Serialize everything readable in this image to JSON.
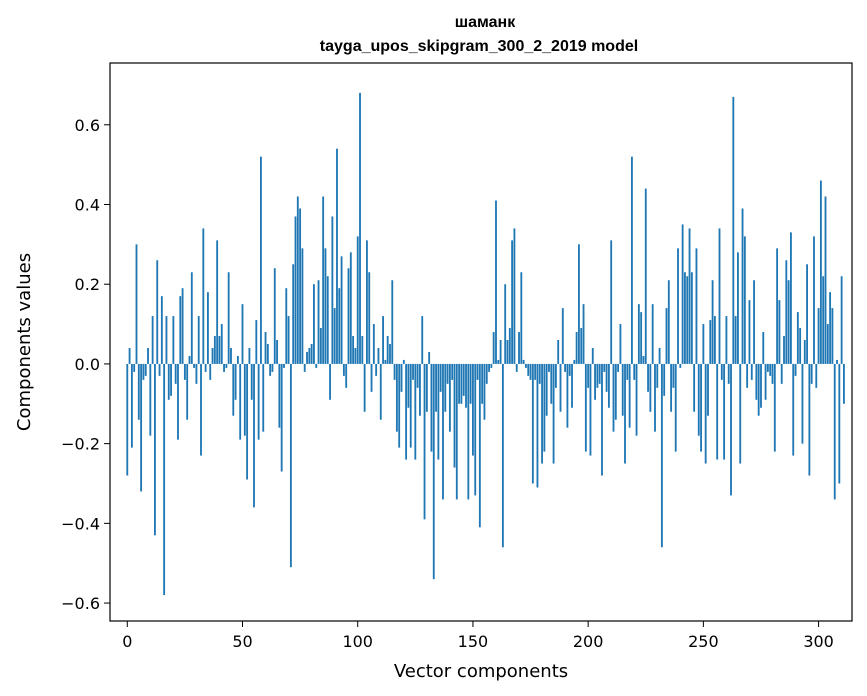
{
  "chart_data": {
    "type": "bar",
    "title": "шаманк",
    "subtitle": "tayga_upos_skipgram_300_2_2019 model",
    "xlabel": "Vector components",
    "ylabel": "Components values",
    "xlim": [
      -7.5,
      314.5
    ],
    "ylim": [
      -0.645,
      0.755
    ],
    "xticks": [
      0,
      50,
      100,
      150,
      200,
      250,
      300
    ],
    "yticks": [
      -0.6,
      -0.4,
      -0.2,
      0.0,
      0.2,
      0.4,
      0.6
    ],
    "ytick_labels": [
      "−0.6",
      "−0.4",
      "−0.2",
      "0.0",
      "0.2",
      "0.4",
      "0.6"
    ],
    "bar_color": "#1f77b4",
    "values": [
      -0.28,
      0.04,
      -0.21,
      -0.02,
      0.3,
      -0.14,
      -0.32,
      -0.04,
      -0.03,
      0.04,
      -0.18,
      0.12,
      -0.43,
      0.26,
      -0.03,
      0.17,
      -0.58,
      0.12,
      -0.09,
      -0.08,
      0.12,
      -0.05,
      -0.19,
      0.17,
      0.19,
      -0.04,
      -0.14,
      0.02,
      0.23,
      -0.01,
      -0.05,
      0.12,
      -0.23,
      0.34,
      -0.02,
      0.18,
      -0.04,
      0.04,
      0.07,
      0.31,
      0.07,
      0.1,
      -0.02,
      -0.01,
      0.23,
      0.04,
      -0.13,
      -0.09,
      0.02,
      -0.19,
      0.15,
      -0.18,
      -0.29,
      0.04,
      -0.09,
      -0.36,
      0.11,
      -0.19,
      0.52,
      -0.17,
      0.08,
      0.05,
      -0.03,
      -0.02,
      0.24,
      0.06,
      -0.16,
      -0.27,
      -0.01,
      0.19,
      0.12,
      -0.51,
      0.25,
      0.37,
      0.42,
      0.39,
      0.29,
      -0.02,
      0.03,
      0.04,
      0.05,
      0.2,
      -0.01,
      0.21,
      0.09,
      0.42,
      0.29,
      0.22,
      -0.09,
      0.37,
      0.14,
      0.54,
      0.19,
      0.27,
      -0.03,
      -0.06,
      0.24,
      0.28,
      0.07,
      0.04,
      0.32,
      0.68,
      0.07,
      -0.12,
      0.31,
      0.23,
      -0.07,
      0.1,
      -0.03,
      0.04,
      -0.14,
      0.12,
      0.01,
      0.07,
      0.05,
      0.21,
      -0.04,
      -0.17,
      -0.21,
      -0.07,
      0.01,
      -0.24,
      -0.11,
      -0.21,
      -0.04,
      -0.24,
      -0.06,
      -0.13,
      0.12,
      -0.39,
      -0.12,
      0.03,
      -0.22,
      -0.54,
      -0.12,
      -0.24,
      -0.07,
      -0.34,
      -0.12,
      -0.05,
      -0.17,
      -0.04,
      -0.26,
      -0.34,
      -0.1,
      -0.1,
      -0.08,
      -0.11,
      -0.34,
      -0.1,
      -0.23,
      -0.33,
      -0.04,
      -0.41,
      -0.1,
      -0.14,
      -0.05,
      -0.02,
      -0.01,
      0.08,
      0.41,
      0.01,
      0.06,
      -0.46,
      0.2,
      0.06,
      0.09,
      0.31,
      0.34,
      -0.02,
      0.08,
      0.23,
      0.01,
      -0.01,
      -0.03,
      -0.04,
      -0.3,
      -0.04,
      -0.31,
      -0.05,
      -0.25,
      -0.22,
      -0.13,
      -0.02,
      -0.1,
      -0.25,
      -0.06,
      0.06,
      -0.12,
      0.14,
      -0.02,
      -0.16,
      -0.03,
      -0.11,
      0.01,
      0.08,
      0.3,
      0.09,
      0.15,
      -0.22,
      -0.06,
      -0.23,
      0.04,
      -0.09,
      -0.06,
      -0.05,
      -0.28,
      -0.02,
      -0.07,
      -0.11,
      0.31,
      -0.17,
      -0.14,
      -0.02,
      0.1,
      -0.13,
      -0.25,
      -0.04,
      -0.16,
      0.52,
      -0.04,
      -0.18,
      0.15,
      0.13,
      0.02,
      0.44,
      -0.07,
      -0.12,
      0.15,
      -0.17,
      -0.06,
      0.04,
      -0.46,
      -0.08,
      0.14,
      0.21,
      -0.12,
      -0.06,
      -0.22,
      0.29,
      -0.01,
      0.35,
      0.23,
      0.22,
      0.34,
      0.23,
      -0.12,
      0.29,
      -0.18,
      -0.22,
      0.1,
      -0.25,
      -0.13,
      0.11,
      0.21,
      0.12,
      -0.24,
      0.34,
      -0.04,
      -0.24,
      0.12,
      -0.05,
      -0.33,
      0.67,
      0.12,
      0.28,
      -0.25,
      0.39,
      0.32,
      -0.06,
      0.16,
      -0.04,
      0.21,
      -0.09,
      -0.13,
      -0.11,
      0.08,
      -0.09,
      -0.02,
      -0.03,
      -0.05,
      -0.22,
      0.29,
      0.16,
      -0.05,
      0.07,
      0.26,
      0.21,
      0.33,
      -0.23,
      -0.03,
      0.13,
      0.09,
      -0.2,
      0.06,
      0.25,
      -0.28,
      -0.05,
      0.32,
      -0.06,
      0.14,
      0.46,
      0.22,
      0.42,
      0.1,
      0.18,
      0.14,
      -0.34,
      0.01,
      -0.3,
      0.22,
      -0.1
    ]
  }
}
